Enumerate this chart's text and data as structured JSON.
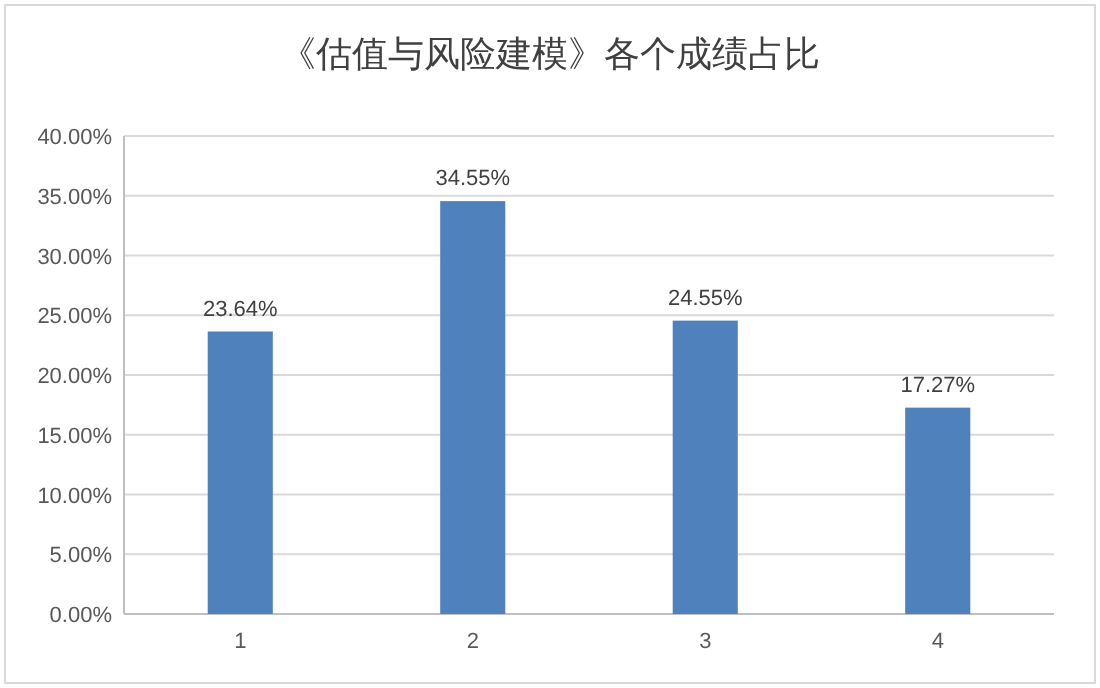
{
  "chart_data": {
    "type": "bar",
    "title": "《估值与风险建模》各个成绩占比",
    "categories": [
      "1",
      "2",
      "3",
      "4"
    ],
    "series": [
      {
        "color": "#4f81bd",
        "values": [
          23.64,
          34.55,
          24.55,
          17.27
        ],
        "value_labels": [
          "23.64%",
          "34.55%",
          "24.55%",
          "17.27%"
        ]
      }
    ],
    "ylim": [
      0,
      40
    ],
    "yticks": [
      {
        "value": 0,
        "label": "0.00%"
      },
      {
        "value": 5,
        "label": "5.00%"
      },
      {
        "value": 10,
        "label": "10.00%"
      },
      {
        "value": 15,
        "label": "15.00%"
      },
      {
        "value": 20,
        "label": "20.00%"
      },
      {
        "value": 25,
        "label": "25.00%"
      },
      {
        "value": 30,
        "label": "30.00%"
      },
      {
        "value": 35,
        "label": "35.00%"
      },
      {
        "value": 40,
        "label": "40.00%"
      }
    ],
    "grid": "y"
  }
}
